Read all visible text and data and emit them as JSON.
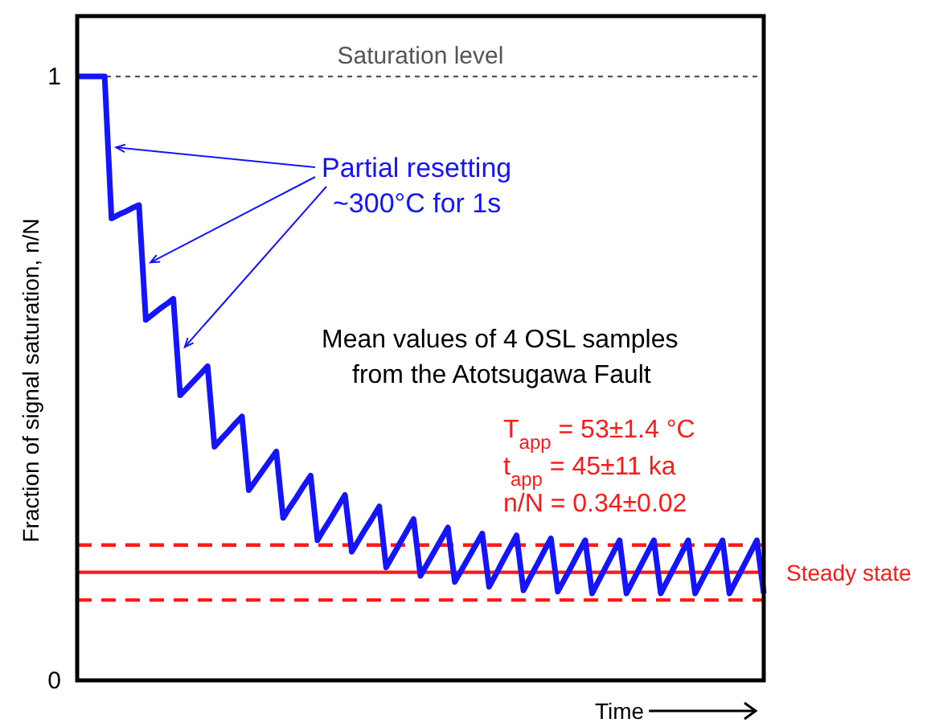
{
  "chart_data": {
    "type": "line",
    "xlabel": "Time",
    "ylabel": "Fraction of signal saturation, n/N",
    "categories": [
      null,
      null,
      null,
      null,
      null,
      null,
      null,
      null,
      null,
      null,
      null,
      null,
      null,
      null,
      null,
      null,
      null,
      null,
      null,
      null,
      null,
      null,
      null,
      null,
      null,
      null,
      null,
      null,
      null,
      null,
      null,
      null,
      null,
      null,
      null,
      null,
      null,
      null,
      null,
      null,
      null,
      null,
      null,
      null,
      null,
      null,
      null,
      null,
      null,
      null,
      null,
      null,
      null,
      null,
      null,
      null,
      null,
      null,
      null,
      null,
      null,
      null,
      null,
      null,
      null,
      null,
      null,
      null,
      null,
      null,
      null,
      null,
      null,
      null,
      null,
      null,
      null,
      null,
      null,
      null,
      null,
      null,
      null,
      null,
      null,
      null,
      null,
      null,
      null,
      null,
      null,
      null,
      null,
      null,
      null,
      null,
      null,
      null,
      null,
      null,
      null
    ],
    "series": [
      {
        "color": "#1414ff",
        "values": [
          1.0,
          1.0,
          1.0,
          1.0,
          1.0,
          0.765,
          0.771,
          0.776,
          0.782,
          0.787,
          0.597,
          0.606,
          0.615,
          0.623,
          0.632,
          0.472,
          0.484,
          0.496,
          0.508,
          0.52,
          0.387,
          0.4,
          0.412,
          0.425,
          0.437,
          0.315,
          0.331,
          0.347,
          0.363,
          0.379,
          0.269,
          0.287,
          0.304,
          0.322,
          0.339,
          0.232,
          0.251,
          0.269,
          0.288,
          0.307,
          0.213,
          0.232,
          0.251,
          0.269,
          0.288,
          0.187,
          0.207,
          0.227,
          0.247,
          0.267,
          0.173,
          0.193,
          0.213,
          0.233,
          0.253,
          0.163,
          0.183,
          0.203,
          0.223,
          0.243,
          0.155,
          0.176,
          0.198,
          0.219,
          0.24,
          0.149,
          0.171,
          0.192,
          0.214,
          0.235,
          0.147,
          0.168,
          0.189,
          0.211,
          0.232,
          0.144,
          0.166,
          0.188,
          0.21,
          0.232,
          0.144,
          0.166,
          0.188,
          0.21,
          0.232,
          0.144,
          0.166,
          0.188,
          0.21,
          0.232,
          0.144,
          0.166,
          0.188,
          0.21,
          0.232,
          0.144,
          0.166,
          0.188,
          0.21,
          0.232,
          0.144
        ]
      }
    ],
    "ylim": [
      0,
      1.1
    ],
    "yticks": [
      0,
      1
    ],
    "tick_labels": "y",
    "grid": false,
    "marker": "none",
    "line_style": "solid",
    "ref_lines": [
      {
        "axis": "y",
        "value": 1,
        "label": "Saturation level",
        "color": "#555555",
        "line_style": "dotted"
      },
      {
        "axis": "y",
        "value": 0.179,
        "label": "Steady state",
        "color": "#ff1a1a",
        "line_style": "solid"
      },
      {
        "axis": "y",
        "value": 0.224,
        "color": "#ff1a1a",
        "line_style": "dashed"
      },
      {
        "axis": "y",
        "value": 0.133,
        "color": "#ff1a1a",
        "line_style": "dashed"
      }
    ],
    "annotations": [
      "Partial resetting\n~300°C for 1s",
      "Mean values of 4 OSL samples\nfrom the Atotsugawa Fault",
      "T$_{app}$ = 53±1.4 °C\nt$_{app}$ = 45±11 ka\nn/N = 0.34±0.02"
    ]
  }
}
